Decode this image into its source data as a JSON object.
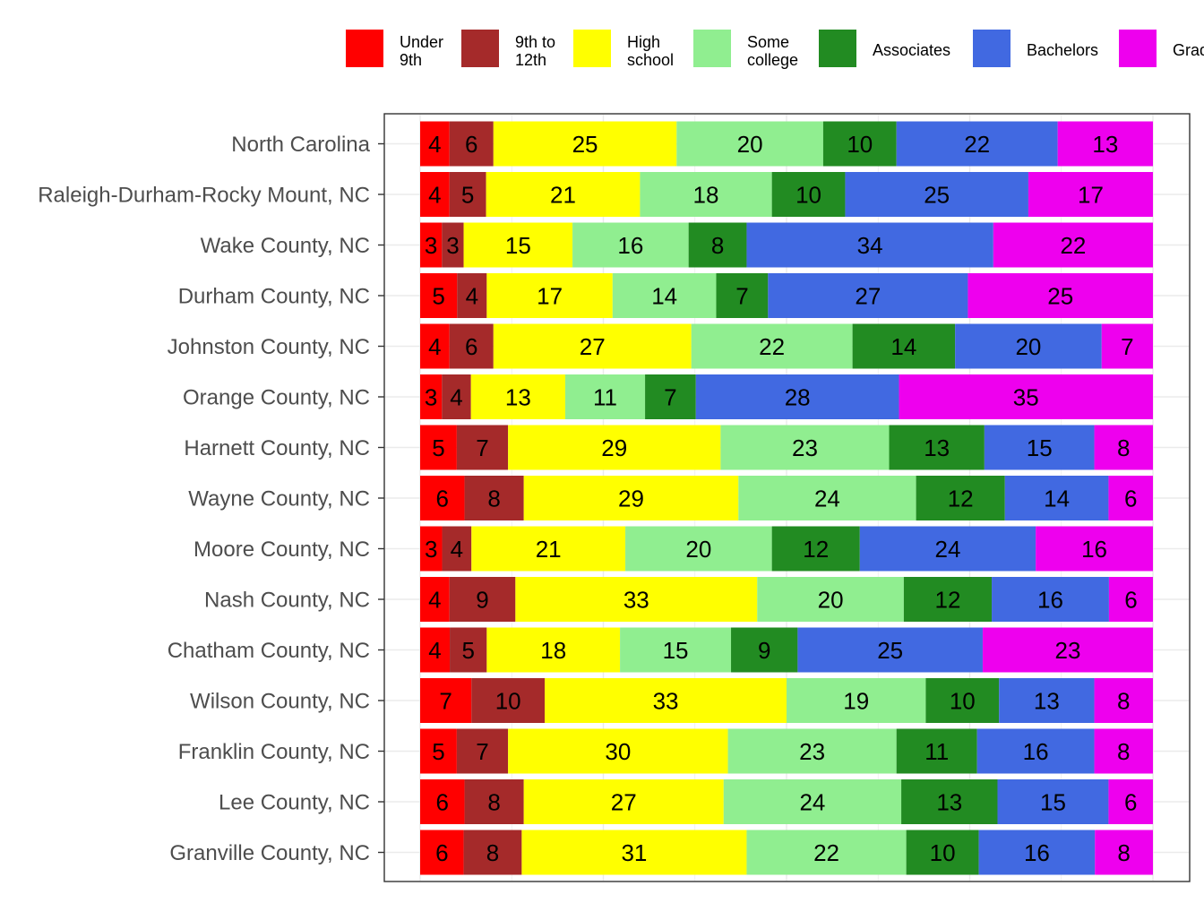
{
  "chart_data": {
    "type": "bar",
    "orientation": "horizontal",
    "stacked": true,
    "xlim": [
      0,
      100
    ],
    "grid": true,
    "legend_position": "top",
    "title": "",
    "xlabel": "",
    "ylabel": "",
    "categories": [
      "North Carolina",
      "Raleigh-Durham-Rocky Mount, NC",
      "Wake County, NC",
      "Durham County, NC",
      "Johnston County, NC",
      "Orange County, NC",
      "Harnett County, NC",
      "Wayne County, NC",
      "Moore County, NC",
      "Nash County, NC",
      "Chatham County, NC",
      "Wilson County, NC",
      "Franklin County, NC",
      "Lee County, NC",
      "Granville County, NC"
    ],
    "series": [
      {
        "name": "Under 9th",
        "legend_lines": [
          "Under",
          "9th"
        ],
        "color": "#ff0000",
        "values": [
          4,
          4,
          3,
          5,
          4,
          3,
          5,
          6,
          3,
          4,
          4,
          7,
          5,
          6,
          6
        ]
      },
      {
        "name": "9th to 12th",
        "legend_lines": [
          "9th to",
          "12th"
        ],
        "color": "#a52a2a",
        "values": [
          6,
          5,
          3,
          4,
          6,
          4,
          7,
          8,
          4,
          9,
          5,
          10,
          7,
          8,
          8
        ]
      },
      {
        "name": "High school",
        "legend_lines": [
          "High",
          "school"
        ],
        "color": "#ffff00",
        "values": [
          25,
          21,
          15,
          17,
          27,
          13,
          29,
          29,
          21,
          33,
          18,
          33,
          30,
          27,
          31
        ]
      },
      {
        "name": "Some college",
        "legend_lines": [
          "Some",
          "college"
        ],
        "color": "#90ee90",
        "values": [
          20,
          18,
          16,
          14,
          22,
          11,
          23,
          24,
          20,
          20,
          15,
          19,
          23,
          24,
          22
        ]
      },
      {
        "name": "Associates",
        "legend_lines": [
          "Associates"
        ],
        "color": "#228b22",
        "values": [
          10,
          10,
          8,
          7,
          14,
          7,
          13,
          12,
          12,
          12,
          9,
          10,
          11,
          13,
          10
        ]
      },
      {
        "name": "Bachelors",
        "legend_lines": [
          "Bachelors"
        ],
        "color": "#4169e1",
        "values": [
          22,
          25,
          34,
          27,
          20,
          28,
          15,
          14,
          24,
          16,
          25,
          13,
          16,
          15,
          16
        ]
      },
      {
        "name": "Grad",
        "legend_lines": [
          "Grad"
        ],
        "color": "#ee00ee",
        "values": [
          13,
          17,
          22,
          25,
          7,
          35,
          8,
          6,
          16,
          6,
          23,
          8,
          8,
          6,
          8
        ]
      }
    ]
  }
}
